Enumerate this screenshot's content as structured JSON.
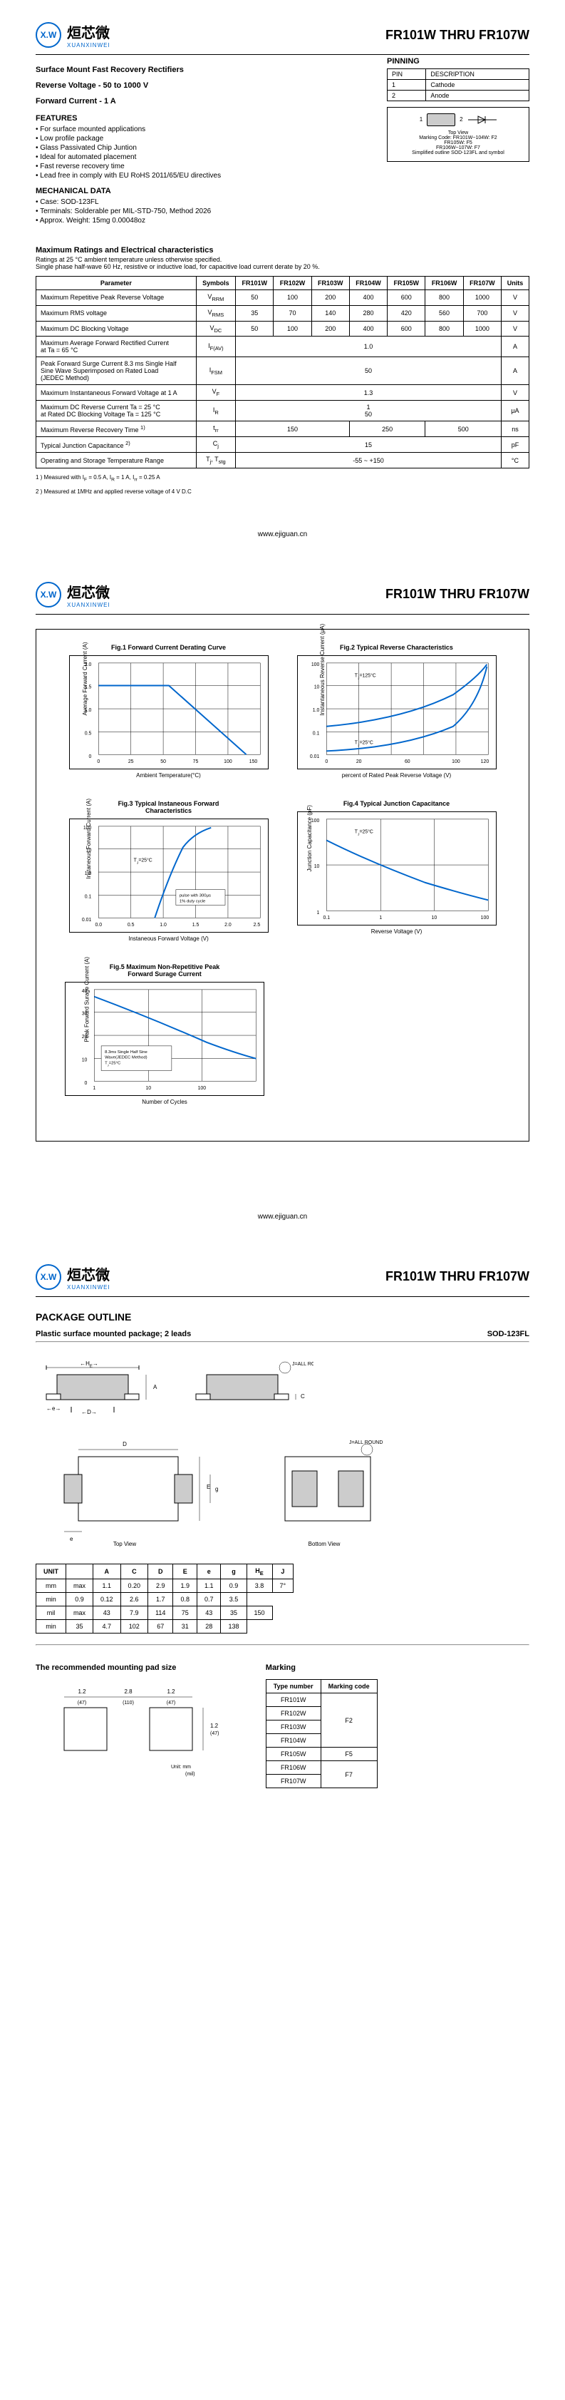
{
  "header": {
    "logo_badge": "X.W",
    "logo_cn": "烜芯微",
    "logo_en": "XUANXINWEI",
    "part_range": "FR101W  THRU  FR107W"
  },
  "page1": {
    "title1": "Surface Mount Fast Recovery Rectifiers",
    "title2": "Reverse Voltage - 50 to 1000 V",
    "title3": "Forward Current - 1 A",
    "features_title": "FEATURES",
    "features": [
      "For surface mounted applications",
      "Low profile package",
      "Glass Passivated Chip Juntion",
      "Ideal for automated placement",
      "Fast reverse recovery time",
      "Lead free in comply with EU RoHS 2011/65/EU directives"
    ],
    "mech_title": "MECHANICAL DATA",
    "mech": [
      "Case: SOD-123FL",
      "Terminals: Solderable per MIL-STD-750, Method 2026",
      "Approx. Weight: 15mg  0.00048oz"
    ],
    "pinning": {
      "title": "PINNING",
      "headers": [
        "PIN",
        "DESCRIPTION"
      ],
      "rows": [
        [
          "1",
          "Cathode"
        ],
        [
          "2",
          "Anode"
        ]
      ],
      "notes": [
        "Top View",
        "Marking Code: FR101W~104W: F2",
        "FR105W: F5",
        "FR106W~107W: F7",
        "Simplified outline SOD-123FL and symbol"
      ]
    },
    "ratings": {
      "title": "Maximum Ratings and Electrical characteristics",
      "note": "Ratings at 25 °C ambient temperature unless otherwise specified.\nSingle phase half-wave 60 Hz, resistive or inductive load, for capacitive load current derate by 20 %.",
      "headers": [
        "Parameter",
        "Symbols",
        "FR101W",
        "FR102W",
        "FR103W",
        "FR104W",
        "FR105W",
        "FR106W",
        "FR107W",
        "Units"
      ],
      "rows": [
        {
          "param": "Maximum Repetitive Peak Reverse Voltage",
          "sym": "V<sub>RRM</sub>",
          "vals": [
            "50",
            "100",
            "200",
            "400",
            "600",
            "800",
            "1000"
          ],
          "unit": "V"
        },
        {
          "param": "Maximum RMS voltage",
          "sym": "V<sub>RMS</sub>",
          "vals": [
            "35",
            "70",
            "140",
            "280",
            "420",
            "560",
            "700"
          ],
          "unit": "V"
        },
        {
          "param": "Maximum DC Blocking Voltage",
          "sym": "V<sub>DC</sub>",
          "vals": [
            "50",
            "100",
            "200",
            "400",
            "600",
            "800",
            "1000"
          ],
          "unit": "V"
        },
        {
          "param": "Maximum Average Forward Rectified Current\nat Ta = 65 °C",
          "sym": "I<sub>F(AV)</sub>",
          "span": "1.0",
          "unit": "A"
        },
        {
          "param": "Peak Forward Surge Current 8.3 ms Single Half\nSine Wave Superimposed on Rated Load\n(JEDEC Method)",
          "sym": "I<sub>FSM</sub>",
          "span": "50",
          "unit": "A"
        },
        {
          "param": "Maximum Instantaneous Forward Voltage at 1 A",
          "sym": "V<sub>F</sub>",
          "span": "1.3",
          "unit": "V"
        },
        {
          "param": "Maximum DC Reverse Current    Ta = 25 °C\nat Rated DC Blocking Voltage    Ta = 125 °C",
          "sym": "I<sub>R</sub>",
          "span": "1\n50",
          "unit": "μA"
        },
        {
          "param": "Maximum Reverse Recovery Time <sup>1)</sup>",
          "sym": "t<sub>rr</sub>",
          "vals_merged": [
            {
              "span": 3,
              "val": "150"
            },
            {
              "span": 2,
              "val": "250"
            },
            {
              "span": 2,
              "val": "500"
            }
          ],
          "unit": "ns"
        },
        {
          "param": "Typical Junction Capacitance <sup>2)</sup>",
          "sym": "C<sub>j</sub>",
          "span": "15",
          "unit": "pF"
        },
        {
          "param": "Operating and Storage Temperature Range",
          "sym": "T<sub>j</sub>, T<sub>stg</sub>",
          "span": "-55 ~ +150",
          "unit": "°C"
        }
      ],
      "footnotes": [
        "1 ) Measured with I<sub>F</sub> = 0.5 A, I<sub>R</sub> = 1 A, I<sub>rr</sub> = 0.25 A",
        "2 ) Measured at 1MHz and applied reverse voltage of 4 V D.C"
      ]
    }
  },
  "page2": {
    "charts": [
      {
        "title": "Fig.1  Forward Current Derating Curve",
        "xlabel": "Ambient Temperature(°C)",
        "ylabel": "Average Forward Current (A)",
        "line_color": "#0066cc"
      },
      {
        "title": "Fig.2  Typical Reverse Characteristics",
        "xlabel": "percent of Rated Peak Reverse Voltage (V)",
        "ylabel": "Instantaneous Reverse Current (μA)",
        "line_color": "#0066cc"
      },
      {
        "title": "Fig.3  Typical Instaneous Forward\nCharacteristics",
        "xlabel": "Instaneous Forward Voltage (V)",
        "ylabel": "Instaneous Forward Current (A)",
        "line_color": "#0066cc"
      },
      {
        "title": "Fig.4  Typical Junction Capacitance",
        "xlabel": "Reverse Voltage (V)",
        "ylabel": "Junction Capacitance (pF)",
        "line_color": "#0066cc"
      },
      {
        "title": "Fig.5  Maximum Non-Repetitive Peak\nForward Surage Current",
        "xlabel": "Number of Cycles",
        "ylabel": "Peak Forward Surage Current (A)",
        "line_color": "#0066cc"
      }
    ]
  },
  "page3": {
    "pkg_title": "PACKAGE  OUTLINE",
    "pkg_subtitle": "Plastic surface mounted package; 2 leads",
    "pkg_code": "SOD-123FL",
    "dim_table": {
      "headers": [
        "UNIT",
        "",
        "A",
        "C",
        "D",
        "E",
        "e",
        "g",
        "H<sub>E</sub>",
        "J"
      ],
      "rows": [
        [
          "mm",
          "max",
          "1.1",
          "0.20",
          "2.9",
          "1.9",
          "1.1",
          "0.9",
          "3.8",
          ""
        ],
        [
          "",
          "min",
          "0.9",
          "0.12",
          "2.6",
          "1.7",
          "0.8",
          "0.7",
          "3.5",
          "7°"
        ],
        [
          "mil",
          "max",
          "43",
          "7.9",
          "114",
          "75",
          "43",
          "35",
          "150",
          ""
        ],
        [
          "",
          "min",
          "35",
          "4.7",
          "102",
          "67",
          "31",
          "28",
          "138",
          ""
        ]
      ]
    },
    "pad_title": "The recommended mounting pad size",
    "marking_title": "Marking",
    "marking_table": {
      "headers": [
        "Type number",
        "Marking code"
      ],
      "rows": [
        [
          "FR101W",
          ""
        ],
        [
          "FR102W",
          ""
        ],
        [
          "FR103W",
          "F2"
        ],
        [
          "FR104W",
          ""
        ],
        [
          "FR105W",
          "F5"
        ],
        [
          "FR106W",
          ""
        ],
        [
          "FR107W",
          "F7"
        ]
      ],
      "merges": [
        [
          0,
          4,
          "F2"
        ],
        [
          4,
          1,
          "F5"
        ],
        [
          5,
          2,
          "F7"
        ]
      ]
    }
  },
  "footer_url": "www.ejiguan.cn"
}
